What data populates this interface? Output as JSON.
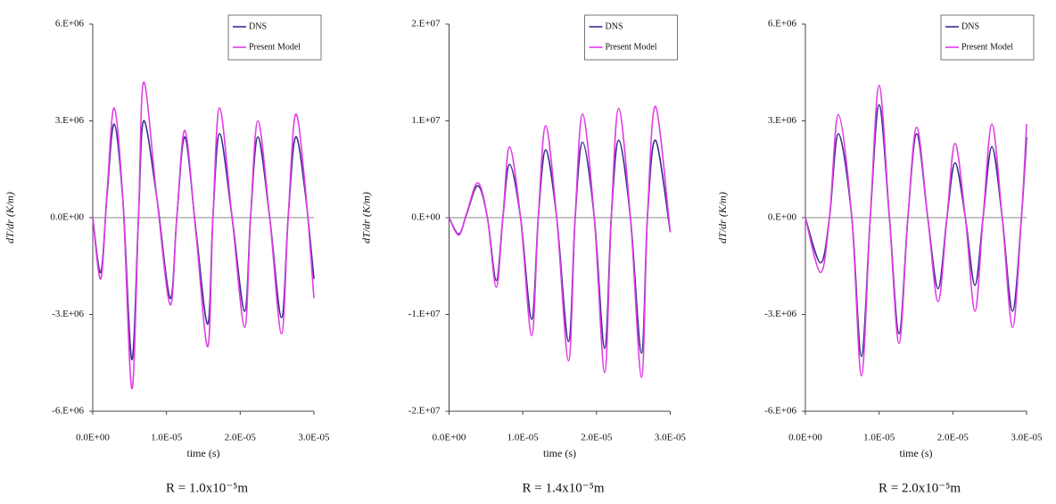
{
  "chart_data": [
    {
      "type": "line",
      "y_label": "dT/dr (K/m)",
      "x_label": "time (s)",
      "caption": "R = 1.0x10⁻⁵m",
      "legend": "upper right",
      "x": [
        0,
        1.09e-06,
        1.94e-06,
        2.9e-06,
        4.1e-06,
        5.3e-06,
        6.2e-06,
        6.9e-06,
        8.7e-06,
        1.05e-05,
        1.14e-05,
        1.25e-05,
        1.4e-05,
        1.56e-05,
        1.63e-05,
        1.72e-05,
        1.89e-05,
        2.06e-05,
        2.14e-05,
        2.24e-05,
        2.4e-05,
        2.56e-05,
        2.65e-05,
        2.75e-05,
        2.88e-05,
        3e-05
      ],
      "series": [
        {
          "name": "DNS",
          "color": "#3a2c8c",
          "values": [
            0,
            -1700000,
            700000,
            2900000,
            500000,
            -4400000,
            0,
            3000000,
            600000,
            -2500000,
            0,
            2500000,
            -400000,
            -3300000,
            0,
            2600000,
            0,
            -2900000,
            0,
            2500000,
            0,
            -3100000,
            0,
            2500000,
            800000,
            -1900000
          ]
        },
        {
          "name": "Present Model",
          "color": "#e03de6",
          "values": [
            0,
            -1900000,
            800000,
            3400000,
            500000,
            -5300000,
            0,
            4200000,
            600000,
            -2700000,
            0,
            2700000,
            -500000,
            -4000000,
            0,
            3400000,
            0,
            -3400000,
            0,
            3000000,
            0,
            -3600000,
            0,
            3200000,
            1000000,
            -2500000
          ]
        }
      ],
      "xlim": [
        0,
        3e-05
      ],
      "xticks": [
        {
          "value": 0,
          "label": "0.0E+00"
        },
        {
          "value": 1e-05,
          "label": "1.0E-05"
        },
        {
          "value": 2e-05,
          "label": "2.0E-05"
        },
        {
          "value": 3e-05,
          "label": "3.0E-05"
        }
      ],
      "ylim": [
        -6000000,
        6000000
      ],
      "yticks": [
        {
          "value": 6000000,
          "label": "6.E+06"
        },
        {
          "value": 3000000,
          "label": "3.E+06"
        },
        {
          "value": 0,
          "label": "0.0E+00"
        },
        {
          "value": -3000000,
          "label": "-3.E+06"
        },
        {
          "value": -6000000,
          "label": "-6.E+06"
        }
      ]
    },
    {
      "type": "line",
      "y_label": "dT/dr (K/m)",
      "x_label": "time (s)",
      "caption": "R = 1.4x10⁻⁵m",
      "legend": "upper right",
      "x": [
        0,
        1.33e-06,
        2.4e-06,
        3.9e-06,
        5.2e-06,
        6.4e-06,
        7.3e-06,
        8.2e-06,
        9.7e-06,
        1.12e-05,
        1.21e-05,
        1.31e-05,
        1.46e-05,
        1.62e-05,
        1.71e-05,
        1.81e-05,
        1.97e-05,
        2.11e-05,
        2.2e-05,
        2.3e-05,
        2.46e-05,
        2.61e-05,
        2.69e-05,
        2.8e-05,
        3e-05
      ],
      "series": [
        {
          "name": "DNS",
          "color": "#3a2c8c",
          "values": [
            0,
            -1700000,
            400000,
            3300000,
            0,
            -6500000,
            0,
            5500000,
            0,
            -10500000,
            0,
            7000000,
            0,
            -12800000,
            0,
            7800000,
            0,
            -13500000,
            0,
            8000000,
            0,
            -14000000,
            0,
            8000000,
            -1500000
          ]
        },
        {
          "name": "Present Model",
          "color": "#e03de6",
          "values": [
            0,
            -1800000,
            500000,
            3600000,
            0,
            -7200000,
            0,
            7300000,
            0,
            -12200000,
            0,
            9500000,
            0,
            -14800000,
            0,
            10700000,
            0,
            -16000000,
            0,
            11300000,
            0,
            -16500000,
            0,
            11500000,
            -1500000
          ]
        }
      ],
      "xlim": [
        0,
        3e-05
      ],
      "xticks": [
        {
          "value": 0,
          "label": "0.0E+00"
        },
        {
          "value": 1e-05,
          "label": "1.0E-05"
        },
        {
          "value": 2e-05,
          "label": "2.0E-05"
        },
        {
          "value": 3e-05,
          "label": "3.0E-05"
        }
      ],
      "ylim": [
        -20000000,
        20000000
      ],
      "yticks": [
        {
          "value": 20000000,
          "label": "2.E+07"
        },
        {
          "value": 10000000,
          "label": "1.E+07"
        },
        {
          "value": 0,
          "label": "0.E+00"
        },
        {
          "value": -10000000,
          "label": "-1.E+07"
        },
        {
          "value": -20000000,
          "label": "-2.E+07"
        }
      ]
    },
    {
      "type": "line",
      "y_label": "dT/dr (K/m)",
      "x_label": "time (s)",
      "caption": "R = 2.0x10⁻⁵m",
      "legend": "upper right",
      "x": [
        0,
        2.06e-06,
        3.27e-06,
        4.48e-06,
        6.3e-06,
        7.6e-06,
        8.8e-06,
        1e-05,
        1.14e-05,
        1.27e-05,
        1.39e-05,
        1.51e-05,
        1.66e-05,
        1.8e-05,
        1.92e-05,
        2.03e-05,
        2.17e-05,
        2.3e-05,
        2.41e-05,
        2.53e-05,
        2.67e-05,
        2.81e-05,
        2.93e-05,
        3e-05
      ],
      "series": [
        {
          "name": "DNS",
          "color": "#3a2c8c",
          "values": [
            0,
            -1400000,
            0,
            2600000,
            0,
            -4300000,
            0,
            3500000,
            0,
            -3600000,
            0,
            2600000,
            0,
            -2200000,
            0,
            1700000,
            0,
            -2100000,
            0,
            2200000,
            0,
            -2900000,
            0,
            2500000
          ]
        },
        {
          "name": "Present Model",
          "color": "#e03de6",
          "values": [
            0,
            -1700000,
            0,
            3200000,
            0,
            -4900000,
            0,
            4100000,
            0,
            -3900000,
            0,
            2800000,
            0,
            -2600000,
            0,
            2300000,
            0,
            -2900000,
            0,
            2900000,
            0,
            -3400000,
            0,
            2900000
          ]
        }
      ],
      "xlim": [
        0,
        3e-05
      ],
      "xticks": [
        {
          "value": 0,
          "label": "0.0E+00"
        },
        {
          "value": 1e-05,
          "label": "1.0E-05"
        },
        {
          "value": 2e-05,
          "label": "2.0E-05"
        },
        {
          "value": 3e-05,
          "label": "3.0E-05"
        }
      ],
      "ylim": [
        -6000000,
        6000000
      ],
      "yticks": [
        {
          "value": 6000000,
          "label": "6.E+06"
        },
        {
          "value": 3000000,
          "label": "3.E+06"
        },
        {
          "value": 0,
          "label": "0.E+00"
        },
        {
          "value": -3000000,
          "label": "-3.E+06"
        },
        {
          "value": -6000000,
          "label": "-6.E+06"
        }
      ]
    }
  ]
}
